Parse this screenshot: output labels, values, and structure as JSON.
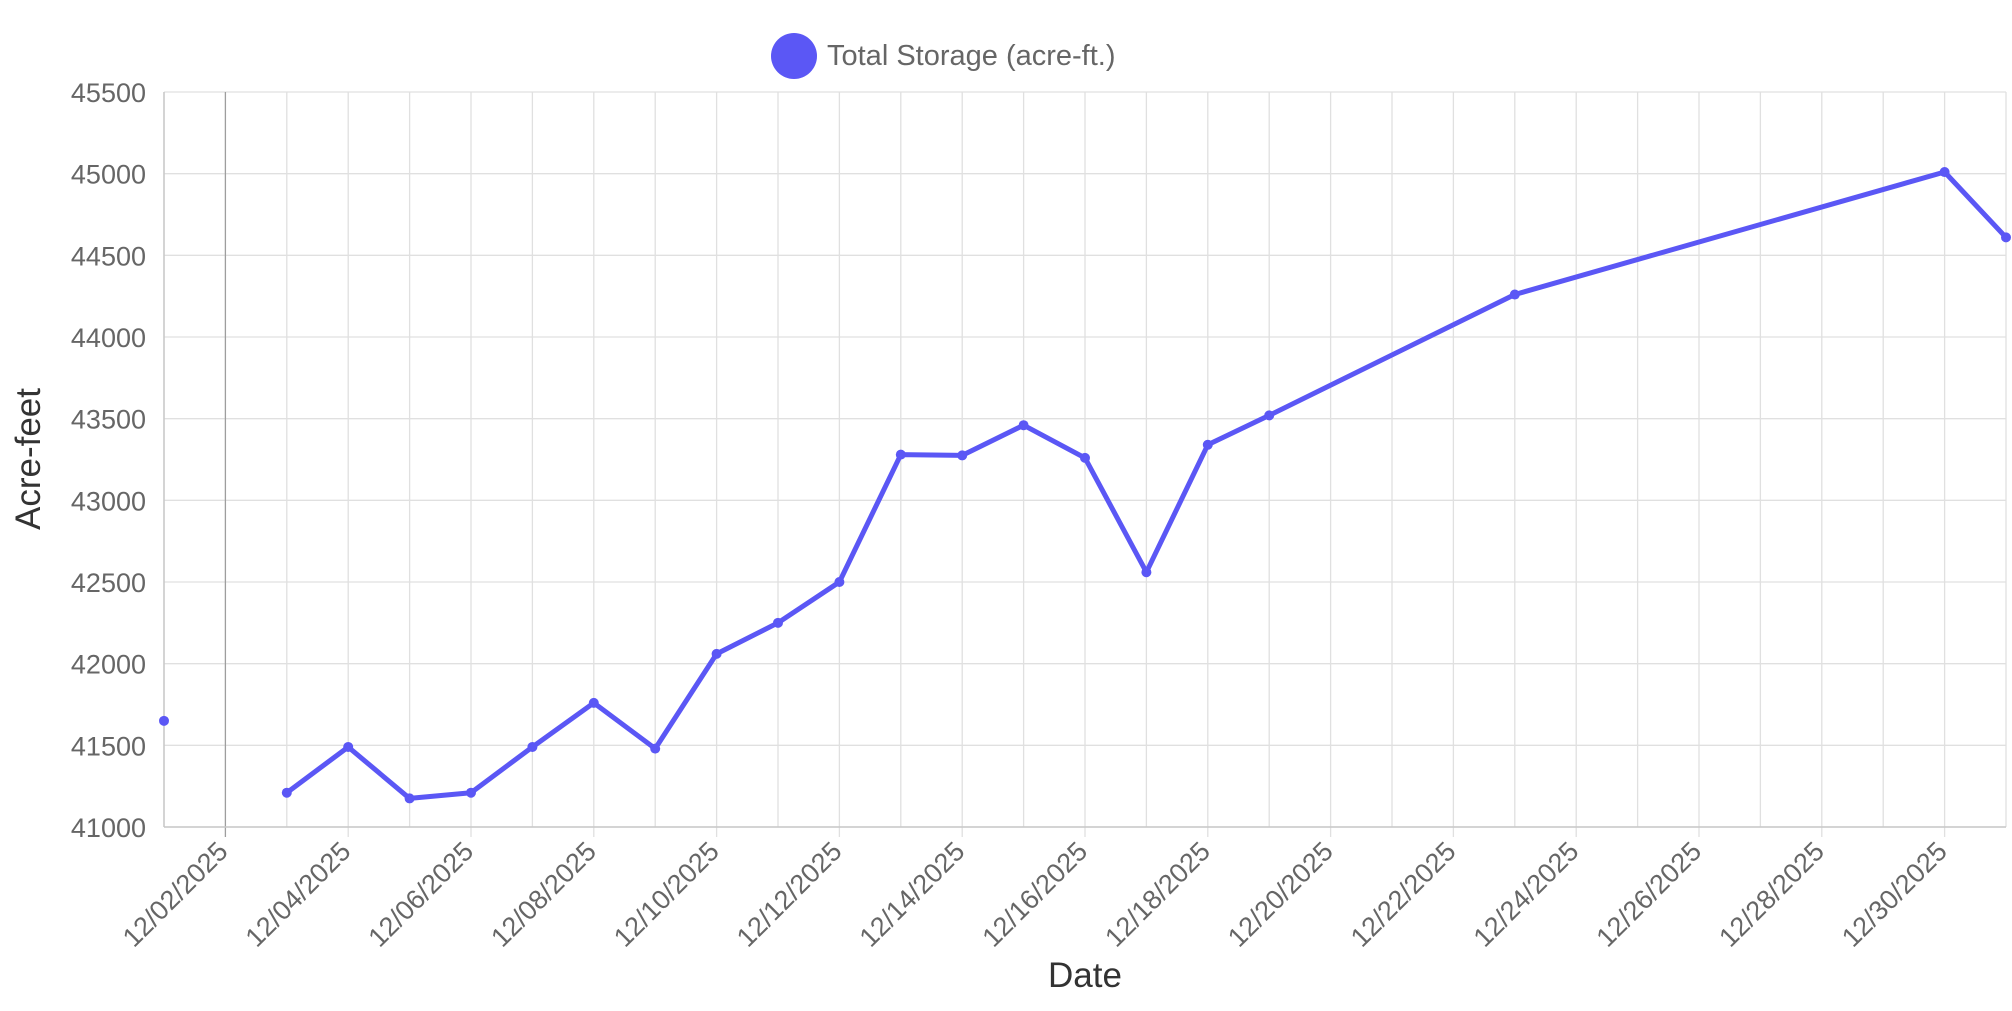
{
  "chart_data": {
    "type": "line",
    "legend": {
      "label": "Total Storage (acre-ft.)",
      "position": "top"
    },
    "xlabel": "Date",
    "ylabel": "Acre-feet",
    "xlim": [
      "2025-12-01",
      "2025-12-31"
    ],
    "ylim": [
      41000,
      45500
    ],
    "grid": true,
    "y_ticks": [
      41000,
      41500,
      42000,
      42500,
      43000,
      43500,
      44000,
      44500,
      45000,
      45500
    ],
    "x_ticks": [
      {
        "date": "2025-12-02",
        "label": "12/02/2025"
      },
      {
        "date": "2025-12-04",
        "label": "12/04/2025"
      },
      {
        "date": "2025-12-06",
        "label": "12/06/2025"
      },
      {
        "date": "2025-12-08",
        "label": "12/08/2025"
      },
      {
        "date": "2025-12-10",
        "label": "12/10/2025"
      },
      {
        "date": "2025-12-12",
        "label": "12/12/2025"
      },
      {
        "date": "2025-12-14",
        "label": "12/14/2025"
      },
      {
        "date": "2025-12-16",
        "label": "12/16/2025"
      },
      {
        "date": "2025-12-18",
        "label": "12/18/2025"
      },
      {
        "date": "2025-12-20",
        "label": "12/20/2025"
      },
      {
        "date": "2025-12-22",
        "label": "12/22/2025"
      },
      {
        "date": "2025-12-24",
        "label": "12/24/2025"
      },
      {
        "date": "2025-12-26",
        "label": "12/26/2025"
      },
      {
        "date": "2025-12-28",
        "label": "12/28/2025"
      },
      {
        "date": "2025-12-30",
        "label": "12/30/2025"
      }
    ],
    "series": [
      {
        "name": "Total Storage (acre-ft.)",
        "color": "#5b57f5",
        "points": [
          {
            "x": "2025-12-01",
            "y": 41650
          },
          {
            "x": "2025-12-03",
            "y": null
          },
          {
            "x": "2025-12-03",
            "y": 41210
          },
          {
            "x": "2025-12-04",
            "y": 41490
          },
          {
            "x": "2025-12-05",
            "y": 41175
          },
          {
            "x": "2025-12-06",
            "y": 41210
          },
          {
            "x": "2025-12-07",
            "y": 41490
          },
          {
            "x": "2025-12-08",
            "y": 41760
          },
          {
            "x": "2025-12-09",
            "y": 41480
          },
          {
            "x": "2025-12-10",
            "y": 42060
          },
          {
            "x": "2025-12-11",
            "y": 42250
          },
          {
            "x": "2025-12-12",
            "y": 42500
          },
          {
            "x": "2025-12-13",
            "y": 43280
          },
          {
            "x": "2025-12-14",
            "y": 43275
          },
          {
            "x": "2025-12-15",
            "y": 43460
          },
          {
            "x": "2025-12-16",
            "y": 43260
          },
          {
            "x": "2025-12-17",
            "y": 42560
          },
          {
            "x": "2025-12-18",
            "y": 43340
          },
          {
            "x": "2025-12-19",
            "y": 43520
          },
          {
            "x": "2025-12-23",
            "y": 44260
          },
          {
            "x": "2025-12-30",
            "y": 45010
          },
          {
            "x": "2025-12-31",
            "y": 44610
          }
        ]
      }
    ]
  }
}
